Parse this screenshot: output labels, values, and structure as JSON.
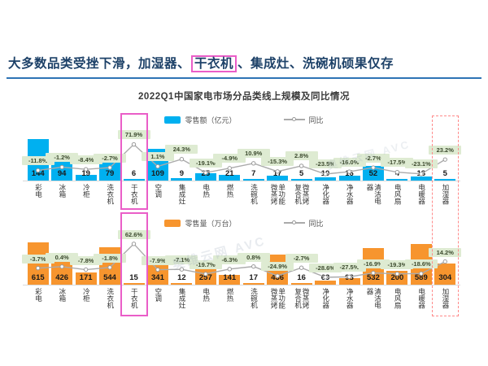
{
  "header": {
    "title_pre": "大多数品类受挫下滑，加湿器、",
    "title_highlight": "干衣机",
    "title_post": "、集成灶、洗碗机硕果仅存",
    "accent_color": "#2e74b5",
    "highlight_box_color": "#ea5ec8"
  },
  "chart_title": "2022Q1中国家电市场分品类线上规模及同比情况",
  "watermark_text": "奥维云网 AVC",
  "chart_data": [
    {
      "type": "bar",
      "name": "online-retail-value",
      "categories": [
        "彩电",
        "冰箱",
        "冷柜",
        "洗衣机",
        "干衣机",
        "空调",
        "集成灶",
        "电热",
        "燃热",
        "洗碗机",
        "单功能微蒸烤",
        "微蒸烤复合机",
        "净化器",
        "净水器",
        "清洁电器",
        "电风扇",
        "电暖器",
        "加湿器"
      ],
      "series": [
        {
          "name": "零售额（亿元）",
          "type": "bar",
          "values": [
            144,
            94,
            19,
            79,
            6,
            109,
            9,
            25,
            21,
            7,
            17,
            5,
            10,
            16,
            52,
            4,
            13,
            5
          ]
        },
        {
          "name": "同比",
          "type": "line",
          "unit": "%",
          "values": [
            -11.8,
            -1.2,
            -8.4,
            -2.7,
            71.9,
            1.1,
            24.3,
            -19.1,
            -4.9,
            10.9,
            -15.3,
            2.8,
            -23.5,
            -16.0,
            -2.7,
            -17.5,
            -23.1,
            23.2
          ]
        }
      ],
      "bar_color": "#00b0f0",
      "line_color": "#ababab",
      "pct_label_bg": "#deebd2",
      "legend_position": "top",
      "grid": false
    },
    {
      "type": "bar",
      "name": "online-retail-volume",
      "categories": [
        "彩电",
        "冰箱",
        "冷柜",
        "洗衣机",
        "干衣机",
        "空调",
        "集成灶",
        "电热",
        "燃热",
        "洗碗机",
        "单功能微蒸烤",
        "微蒸烤复合机",
        "净化器",
        "净水器",
        "清洁电器",
        "电风扇",
        "电暖器",
        "加湿器"
      ],
      "series": [
        {
          "name": "零售量（万台）",
          "type": "bar",
          "values": [
            615,
            426,
            171,
            544,
            15,
            341,
            12,
            257,
            141,
            17,
            436,
            16,
            63,
            98,
            532,
            200,
            589,
            304
          ]
        },
        {
          "name": "同比",
          "type": "line",
          "unit": "%",
          "values": [
            -3.7,
            0.4,
            -7.8,
            -1.8,
            62.6,
            -7.9,
            -7.1,
            -19.7,
            -6.3,
            0.8,
            -24.9,
            -2.7,
            -28.6,
            -27.5,
            -16.9,
            -19.3,
            -18.6,
            14.2
          ]
        }
      ],
      "bar_color": "#f7952e",
      "line_color": "#ababab",
      "pct_label_bg": "#deebd2",
      "legend_position": "top",
      "grid": false
    }
  ],
  "annotations": {
    "solid_box_category": "干衣机",
    "solid_box_color": "#ea5ec8",
    "dashed_box_category": "加湿器",
    "dashed_box_color": "#ff8a8a"
  }
}
